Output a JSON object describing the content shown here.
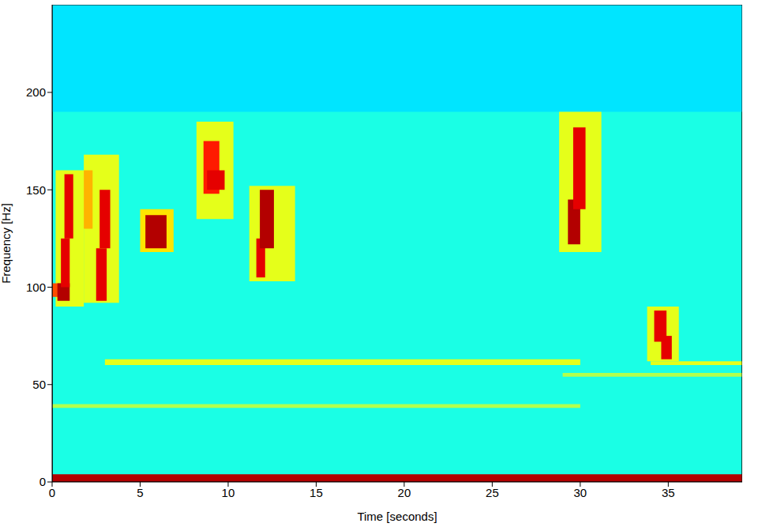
{
  "chart_data": {
    "type": "heatmap",
    "x_label": "Time [seconds]",
    "y_label": "Frequency [Hz]",
    "xlim": [
      0,
      39.2
    ],
    "ylim": [
      0,
      245
    ],
    "xticks": [
      0,
      5,
      10,
      15,
      20,
      25,
      30,
      35
    ],
    "yticks": [
      0,
      50,
      100,
      150,
      200
    ],
    "grid": false,
    "color_range": [
      0,
      10
    ],
    "background": 4,
    "cells": [
      [
        0,
        39.2,
        190,
        245,
        3.5
      ],
      [
        3,
        30,
        60,
        63,
        6
      ],
      [
        0,
        30,
        38,
        40,
        5.5
      ],
      [
        29,
        39.2,
        54,
        56,
        5.5
      ],
      [
        34,
        39.2,
        60,
        62,
        6
      ],
      [
        0.2,
        1.8,
        90,
        160,
        6
      ],
      [
        0,
        0.5,
        95,
        102,
        8
      ],
      [
        0.3,
        1.0,
        93,
        102,
        9.5
      ],
      [
        0.5,
        1.0,
        100,
        125,
        9
      ],
      [
        0.7,
        1.2,
        125,
        158,
        9
      ],
      [
        1.8,
        3.8,
        92,
        168,
        6
      ],
      [
        1.8,
        2.3,
        130,
        160,
        7
      ],
      [
        2.5,
        3.1,
        93,
        120,
        9
      ],
      [
        2.7,
        3.3,
        120,
        150,
        9
      ],
      [
        5.0,
        6.9,
        118,
        140,
        6.5
      ],
      [
        5.3,
        6.5,
        120,
        137,
        9.5
      ],
      [
        8.2,
        10.3,
        135,
        185,
        6
      ],
      [
        8.6,
        9.5,
        148,
        175,
        8.5
      ],
      [
        8.8,
        9.8,
        150,
        160,
        9
      ],
      [
        11.2,
        13.8,
        103,
        152,
        6
      ],
      [
        11.6,
        12.1,
        105,
        125,
        9
      ],
      [
        11.8,
        12.6,
        120,
        150,
        9.5
      ],
      [
        28.8,
        31.2,
        118,
        190,
        6
      ],
      [
        29.3,
        30.0,
        122,
        145,
        9.5
      ],
      [
        29.6,
        30.3,
        140,
        182,
        9
      ],
      [
        33.8,
        35.6,
        62,
        90,
        6
      ],
      [
        34.6,
        35.2,
        63,
        75,
        9
      ],
      [
        34.2,
        34.9,
        72,
        88,
        9
      ],
      [
        0,
        39.2,
        0,
        4,
        9.5
      ]
    ]
  }
}
